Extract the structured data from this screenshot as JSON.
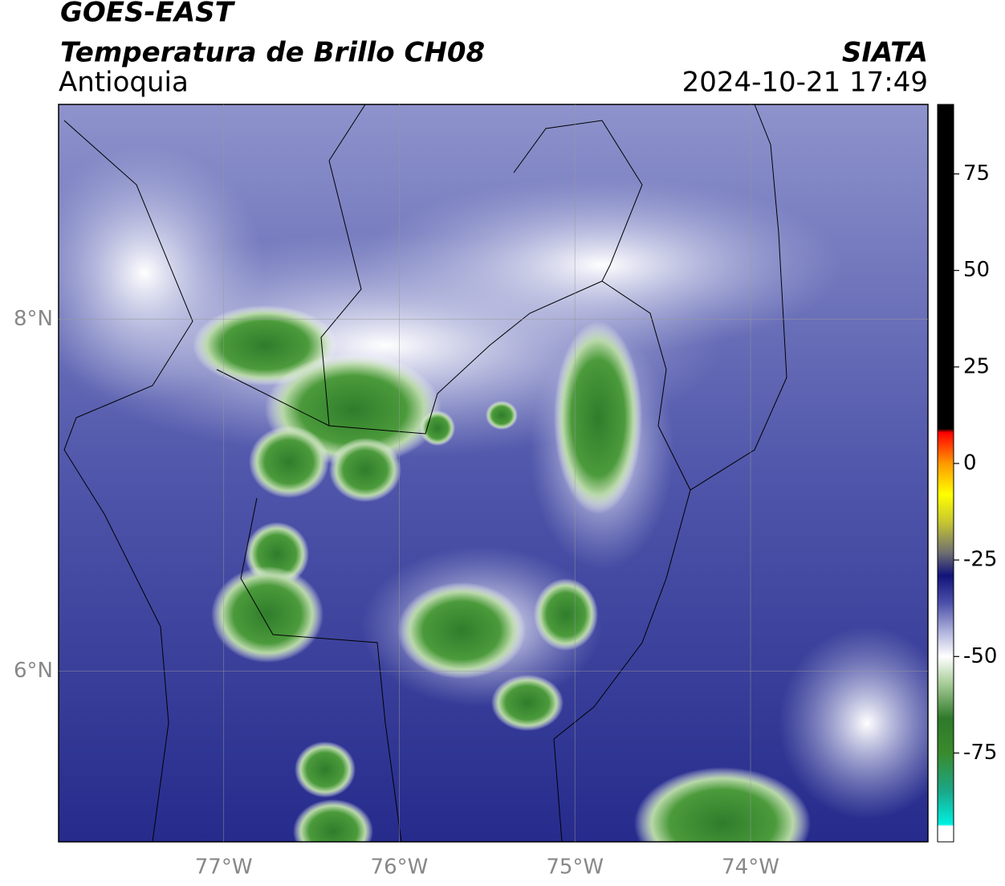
{
  "header": {
    "title": "GOES-EAST",
    "subtitle": "Temperatura de Brillo CH08",
    "region": "Antioquia",
    "source": "SIATA",
    "datetime": "2024-10-21 17:49"
  },
  "map": {
    "xlim": [
      -77.94,
      -72.99
    ],
    "ylim": [
      5.03,
      9.22
    ],
    "xticks": [
      {
        "value": -77,
        "label": "77°W"
      },
      {
        "value": -76,
        "label": "76°W"
      },
      {
        "value": -75,
        "label": "75°W"
      },
      {
        "value": -74,
        "label": "74°W"
      }
    ],
    "yticks": [
      {
        "value": 8,
        "label": "8°N"
      },
      {
        "value": 6,
        "label": "6°N"
      }
    ],
    "grid": true
  },
  "colorbar": {
    "lim": [
      -98,
      93
    ],
    "ticks": [
      75,
      50,
      25,
      0,
      -25,
      -50,
      -75
    ],
    "colormap": [
      {
        "value": -98,
        "color": "#ffffff"
      },
      {
        "value": -94,
        "color": "#ffffff"
      },
      {
        "value": -93.5,
        "color": "#00f0e0"
      },
      {
        "value": -85,
        "color": "#1aa88a"
      },
      {
        "value": -75,
        "color": "#3a8a2c"
      },
      {
        "value": -66,
        "color": "#2e7a2a"
      },
      {
        "value": -57,
        "color": "#a8cc98"
      },
      {
        "value": -50,
        "color": "#ffffff"
      },
      {
        "value": -44,
        "color": "#b4b8de"
      },
      {
        "value": -36,
        "color": "#4a4fa8"
      },
      {
        "value": -29,
        "color": "#12137a"
      },
      {
        "value": -23,
        "color": "#707070"
      },
      {
        "value": -15,
        "color": "#c8c830"
      },
      {
        "value": -8,
        "color": "#ffff00"
      },
      {
        "value": 0,
        "color": "#ff9900"
      },
      {
        "value": 8,
        "color": "#ff0000"
      },
      {
        "value": 9,
        "color": "#000000"
      },
      {
        "value": 93,
        "color": "#000000"
      }
    ]
  }
}
